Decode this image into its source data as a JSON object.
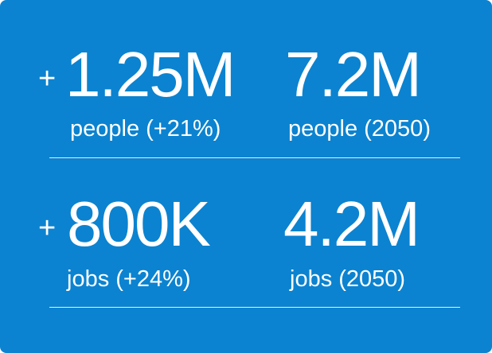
{
  "rows": [
    {
      "items": [
        {
          "prefix": "+",
          "value": "1.25M",
          "label": "people (+21%)"
        },
        {
          "value": "7.2M",
          "label": "people (2050)"
        }
      ]
    },
    {
      "items": [
        {
          "prefix": "+",
          "value": "800K",
          "label": "jobs (+24%)"
        },
        {
          "value": "4.2M",
          "label": "jobs (2050)"
        }
      ]
    }
  ]
}
